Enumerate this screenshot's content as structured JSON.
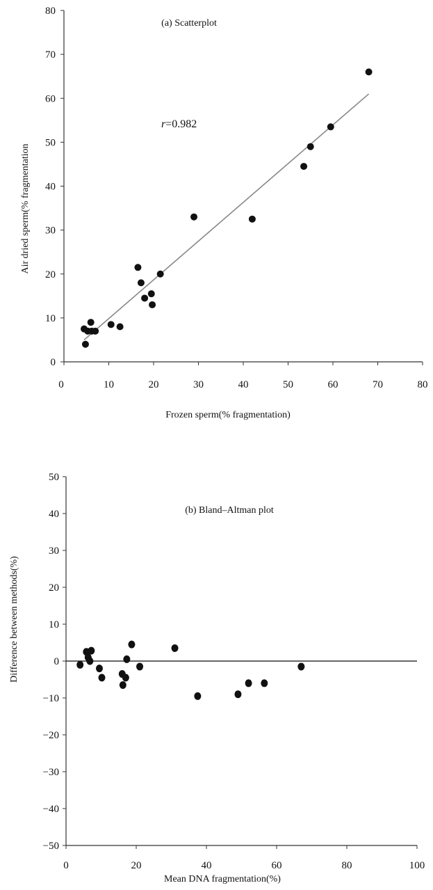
{
  "chart_data": [
    {
      "type": "scatter",
      "title": "(a) Scatterplot",
      "xlabel": "Frozen sperm(%   fragmentation)",
      "ylabel": "Air dried sperm(% fragmentation",
      "xlim": [
        0,
        80
      ],
      "ylim": [
        0,
        80
      ],
      "xticks": [
        "0",
        "10",
        "20",
        "30",
        "40",
        "50",
        "60",
        "70",
        "80"
      ],
      "yticks": [
        "0",
        "10",
        "20",
        "30",
        "40",
        "50",
        "60",
        "70",
        "80"
      ],
      "annotation": {
        "italic": "r",
        "text": "=0.982"
      },
      "fit_line": {
        "x": [
          4.5,
          68
        ],
        "y": [
          5,
          61
        ]
      },
      "points": {
        "x": [
          4.5,
          4.8,
          5.3,
          6,
          6.2,
          7,
          10.5,
          12.5,
          16.5,
          17.2,
          18,
          19.5,
          19.7,
          21.5,
          29,
          42,
          53.5,
          55,
          59.5,
          68
        ],
        "y": [
          7.5,
          4,
          7,
          9,
          7,
          7,
          8.5,
          8,
          21.5,
          18,
          14.5,
          15.5,
          13,
          20,
          33,
          32.5,
          44.5,
          49,
          53.5,
          66
        ]
      }
    },
    {
      "type": "scatter",
      "title": "(b) Bland–Altman plot",
      "xlabel": "Mean DNA fragmentation(%)",
      "ylabel": "Difference between methods(%)",
      "xlim": [
        0,
        100
      ],
      "ylim": [
        -50,
        50
      ],
      "xticks": [
        "0",
        "20",
        "40",
        "60",
        "80",
        "100"
      ],
      "yticks": [
        "50",
        "40",
        "30",
        "20",
        "10",
        "0",
        "−10",
        "−20",
        "−30",
        "−40",
        "−50"
      ],
      "reference_line_y": 0,
      "points": {
        "x": [
          4,
          5.8,
          6.3,
          6.8,
          7.2,
          9.5,
          10.2,
          16,
          16.2,
          17,
          17.3,
          18.7,
          21,
          31,
          37.5,
          49,
          52,
          56.5,
          67
        ],
        "y": [
          -1,
          2.5,
          1,
          0,
          2.8,
          -2,
          -4.5,
          -3.5,
          -6.5,
          -4.5,
          0.5,
          4.5,
          -1.5,
          3.5,
          -9.5,
          -9,
          -6,
          -6,
          -1.5
        ]
      }
    }
  ]
}
